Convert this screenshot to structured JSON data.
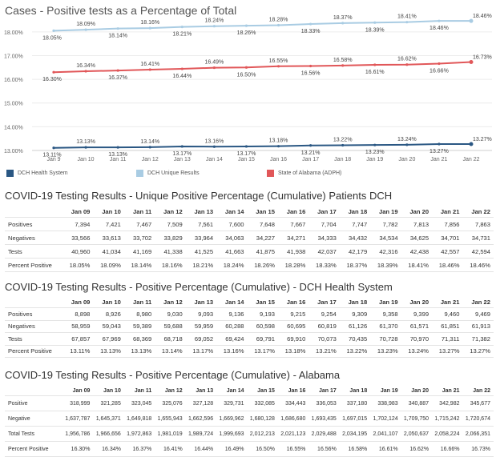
{
  "chart_data": {
    "type": "line",
    "title": "Cases - Positive tests as a Percentage of Total",
    "categories": [
      "Jan 9",
      "Jan 10",
      "Jan 11",
      "Jan 12",
      "Jan 13",
      "Jan 14",
      "Jan 15",
      "Jan 16",
      "Jan 17",
      "Jan 18",
      "Jan 19",
      "Jan 20",
      "Jan 21",
      "Jan 22"
    ],
    "y_ticks": [
      "18.00%",
      "17.00%",
      "16.00%",
      "15.00%",
      "14.00%",
      "13.00%"
    ],
    "ylim": [
      13.0,
      18.5
    ],
    "grid": true,
    "legend_position": "bottom",
    "series": [
      {
        "name": "DCH Health System",
        "color": "#2a5783",
        "values": [
          13.11,
          13.13,
          13.13,
          13.14,
          13.17,
          13.16,
          13.17,
          13.18,
          13.21,
          13.22,
          13.23,
          13.24,
          13.27,
          13.27
        ],
        "labels": [
          "13.11%",
          "13.13%",
          "13.13%",
          "13.14%",
          "13.17%",
          "13.16%",
          "13.17%",
          "13.18%",
          "13.21%",
          "13.22%",
          "13.23%",
          "13.24%",
          "13.27%",
          "13.27%"
        ]
      },
      {
        "name": "DCH Unique Results",
        "color": "#a9cce3",
        "values": [
          18.05,
          18.09,
          18.14,
          18.16,
          18.21,
          18.24,
          18.26,
          18.28,
          18.33,
          18.37,
          18.39,
          18.41,
          18.46,
          18.46
        ],
        "labels": [
          "18.05%",
          "18.09%",
          "18.14%",
          "18.16%",
          "18.21%",
          "18.24%",
          "18.26%",
          "18.28%",
          "18.33%",
          "18.37%",
          "18.39%",
          "18.41%",
          "18.46%",
          "18.46%"
        ]
      },
      {
        "name": "State of Alabama (ADPH)",
        "color": "#e15759",
        "values": [
          16.3,
          16.34,
          16.37,
          16.41,
          16.44,
          16.49,
          16.5,
          16.55,
          16.56,
          16.58,
          16.61,
          16.62,
          16.66,
          16.73
        ],
        "labels": [
          "16.30%",
          "16.34%",
          "16.37%",
          "16.41%",
          "16.44%",
          "16.49%",
          "16.50%",
          "16.55%",
          "16.56%",
          "16.58%",
          "16.61%",
          "16.62%",
          "16.66%",
          "16.73%"
        ]
      }
    ]
  },
  "tables": [
    {
      "title": "COVID-19 Testing Results - Unique Positive Percentage (Cumulative) Patients DCH",
      "headers": [
        "",
        "Jan 09",
        "Jan 10",
        "Jan 11",
        "Jan 12",
        "Jan 13",
        "Jan 14",
        "Jan 15",
        "Jan 16",
        "Jan 17",
        "Jan 18",
        "Jan 19",
        "Jan 20",
        "Jan 21",
        "Jan 22"
      ],
      "rows": [
        [
          "Positives",
          "7,394",
          "7,421",
          "7,467",
          "7,509",
          "7,561",
          "7,600",
          "7,648",
          "7,667",
          "7,704",
          "7,747",
          "7,782",
          "7,813",
          "7,856",
          "7,863"
        ],
        [
          "Negatives",
          "33,566",
          "33,613",
          "33,702",
          "33,829",
          "33,964",
          "34,063",
          "34,227",
          "34,271",
          "34,333",
          "34,432",
          "34,534",
          "34,625",
          "34,701",
          "34,731"
        ],
        [
          "Tests",
          "40,960",
          "41,034",
          "41,169",
          "41,338",
          "41,525",
          "41,663",
          "41,875",
          "41,938",
          "42,037",
          "42,179",
          "42,316",
          "42,438",
          "42,557",
          "42,594"
        ],
        [
          "Percent Positive",
          "18.05%",
          "18.09%",
          "18.14%",
          "18.16%",
          "18.21%",
          "18.24%",
          "18.26%",
          "18.28%",
          "18.33%",
          "18.37%",
          "18.39%",
          "18.41%",
          "18.46%",
          "18.46%"
        ]
      ]
    },
    {
      "title": "COVID-19 Testing Results - Positive Percentage (Cumulative) - DCH Health System",
      "headers": [
        "",
        "Jan 09",
        "Jan 10",
        "Jan 11",
        "Jan 12",
        "Jan 13",
        "Jan 14",
        "Jan 15",
        "Jan 16",
        "Jan 17",
        "Jan 18",
        "Jan 19",
        "Jan 20",
        "Jan 21",
        "Jan 22"
      ],
      "rows": [
        [
          "Positives",
          "8,898",
          "8,926",
          "8,980",
          "9,030",
          "9,093",
          "9,136",
          "9,193",
          "9,215",
          "9,254",
          "9,309",
          "9,358",
          "9,399",
          "9,460",
          "9,469"
        ],
        [
          "Negatives",
          "58,959",
          "59,043",
          "59,389",
          "59,688",
          "59,959",
          "60,288",
          "60,598",
          "60,695",
          "60,819",
          "61,126",
          "61,370",
          "61,571",
          "61,851",
          "61,913"
        ],
        [
          "Tests",
          "67,857",
          "67,969",
          "68,369",
          "68,718",
          "69,052",
          "69,424",
          "69,791",
          "69,910",
          "70,073",
          "70,435",
          "70,728",
          "70,970",
          "71,311",
          "71,382"
        ],
        [
          "Percent Positive",
          "13.11%",
          "13.13%",
          "13.13%",
          "13.14%",
          "13.17%",
          "13.16%",
          "13.17%",
          "13.18%",
          "13.21%",
          "13.22%",
          "13.23%",
          "13.24%",
          "13.27%",
          "13.27%"
        ]
      ]
    },
    {
      "title": "COVID-19 Testing Results - Positive Percentage (Cumulative) - Alabama",
      "headers": [
        "",
        "Jan 09",
        "Jan 10",
        "Jan 11",
        "Jan 12",
        "Jan 13",
        "Jan 14",
        "Jan 15",
        "Jan 16",
        "Jan 17",
        "Jan 18",
        "Jan 19",
        "Jan 20",
        "Jan 21",
        "Jan 22"
      ],
      "rows": [
        [
          "Positive",
          "318,999",
          "321,285",
          "323,045",
          "325,076",
          "327,128",
          "329,731",
          "332,085",
          "334,443",
          "336,053",
          "337,180",
          "338,983",
          "340,887",
          "342,982",
          "345,677"
        ],
        [
          "Negative",
          "1,637,787",
          "1,645,371",
          "1,649,818",
          "1,655,943",
          "1,662,596",
          "1,669,962",
          "1,680,128",
          "1,686,680",
          "1,693,435",
          "1,697,015",
          "1,702,124",
          "1,709,750",
          "1,715,242",
          "1,720,674"
        ],
        [
          "Total Tests",
          "1,956,786",
          "1,966,656",
          "1,972,863",
          "1,981,019",
          "1,989,724",
          "1,999,693",
          "2,012,213",
          "2,021,123",
          "2,029,488",
          "2,034,195",
          "2,041,107",
          "2,050,637",
          "2,058,224",
          "2,066,351"
        ],
        [
          "Percent Positive",
          "16.30%",
          "16.34%",
          "16.37%",
          "16.41%",
          "16.44%",
          "16.49%",
          "16.50%",
          "16.55%",
          "16.56%",
          "16.58%",
          "16.61%",
          "16.62%",
          "16.66%",
          "16.73%"
        ]
      ]
    }
  ]
}
